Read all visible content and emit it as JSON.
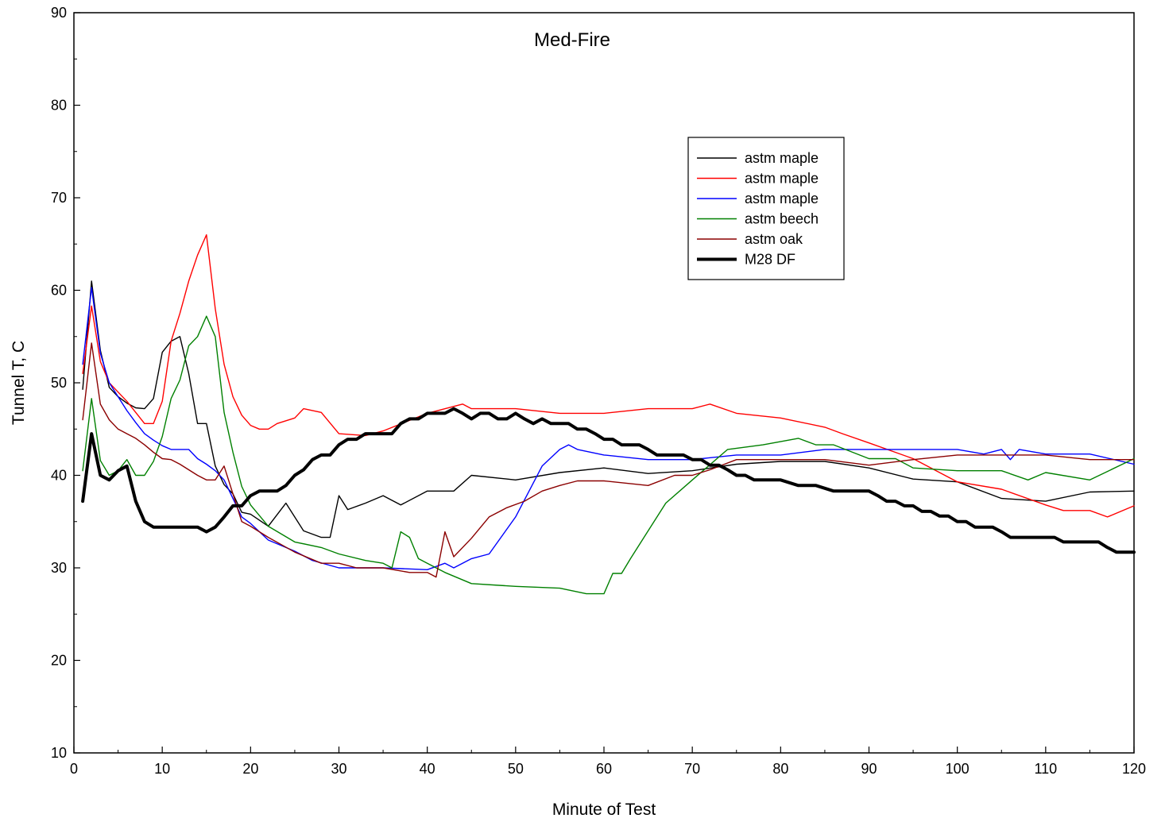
{
  "chart_data": {
    "type": "line",
    "title": "Med-Fire",
    "xlabel": "Minute of Test",
    "ylabel": "Tunnel T, C",
    "xlim": [
      0,
      120
    ],
    "ylim": [
      10,
      90
    ],
    "xticks": [
      0,
      10,
      20,
      30,
      40,
      50,
      60,
      70,
      80,
      90,
      100,
      110,
      120
    ],
    "yticks": [
      10,
      20,
      30,
      40,
      50,
      60,
      70,
      80,
      90
    ],
    "grid": false,
    "legend_position": "top-right",
    "series": [
      {
        "name": "astm maple",
        "color": "#000000",
        "x": [
          1,
          2,
          3,
          4,
          5,
          6,
          7,
          8,
          9,
          10,
          11,
          12,
          13,
          14,
          15,
          16,
          17,
          18,
          19,
          20,
          22,
          24,
          26,
          28,
          29,
          30,
          31,
          33,
          35,
          37,
          40,
          43,
          45,
          50,
          55,
          60,
          65,
          70,
          75,
          80,
          85,
          90,
          95,
          100,
          105,
          110,
          115,
          120
        ],
        "y": [
          49.3,
          61,
          53.5,
          49.5,
          48.5,
          47.8,
          47.3,
          47.2,
          48.3,
          53.3,
          54.5,
          55,
          51,
          45.6,
          45.6,
          41,
          39,
          38,
          36,
          35.8,
          34.5,
          37,
          34,
          33.3,
          33.3,
          37.8,
          36.3,
          37,
          37.8,
          36.8,
          38.3,
          38.3,
          40,
          39.5,
          40.3,
          40.8,
          40.2,
          40.5,
          41.2,
          41.5,
          41.5,
          40.8,
          39.6,
          39.3,
          37.5,
          37.2,
          38.2,
          38.3
        ]
      },
      {
        "name": "astm maple",
        "color": "#ff0000",
        "x": [
          1,
          2,
          3,
          4,
          5,
          6,
          7,
          8,
          9,
          10,
          11,
          12,
          13,
          14,
          15,
          16,
          17,
          18,
          19,
          20,
          21,
          22,
          23,
          25,
          26,
          28,
          30,
          33,
          35,
          40,
          44,
          45,
          50,
          55,
          60,
          65,
          70,
          72,
          75,
          80,
          85,
          87,
          90,
          95,
          100,
          105,
          110,
          112,
          115,
          117,
          120
        ],
        "y": [
          51,
          58.3,
          52.3,
          50,
          49,
          48,
          46.8,
          45.6,
          45.6,
          48,
          54.5,
          57.5,
          61,
          63.8,
          66,
          58,
          52,
          48.5,
          46.5,
          45.4,
          45,
          45,
          45.6,
          46.2,
          47.2,
          46.8,
          44.5,
          44.3,
          44.8,
          46.7,
          47.7,
          47.2,
          47.2,
          46.7,
          46.7,
          47.2,
          47.2,
          47.7,
          46.7,
          46.2,
          45.2,
          44.5,
          43.5,
          41.8,
          39.3,
          38.5,
          36.8,
          36.2,
          36.2,
          35.5,
          36.7
        ]
      },
      {
        "name": "astm maple",
        "color": "#0000ff",
        "x": [
          1,
          2,
          3,
          4,
          5,
          6,
          7,
          8,
          9,
          10,
          11,
          12,
          13,
          14,
          15,
          16,
          17,
          18,
          19,
          20,
          22,
          25,
          27,
          30,
          35,
          40,
          42,
          43,
          45,
          47,
          50,
          53,
          55,
          56,
          57,
          60,
          65,
          70,
          75,
          80,
          85,
          90,
          95,
          100,
          103,
          105,
          106,
          107,
          110,
          115,
          120
        ],
        "y": [
          52,
          60.3,
          53.2,
          50,
          48.5,
          47,
          45.7,
          44.5,
          43.8,
          43.2,
          42.8,
          42.8,
          42.8,
          41.8,
          41.2,
          40.5,
          39.5,
          37.5,
          35.5,
          34.8,
          33,
          31.8,
          30.8,
          30,
          30,
          29.8,
          30.5,
          30,
          31,
          31.5,
          35.5,
          41,
          42.8,
          43.3,
          42.8,
          42.2,
          41.7,
          41.7,
          42.2,
          42.2,
          42.8,
          42.8,
          42.8,
          42.8,
          42.3,
          42.8,
          41.7,
          42.8,
          42.3,
          42.3,
          41.2
        ]
      },
      {
        "name": "astm beech",
        "color": "#008000",
        "x": [
          1,
          2,
          3,
          4,
          5,
          6,
          7,
          8,
          9,
          10,
          11,
          12,
          13,
          14,
          15,
          16,
          17,
          18,
          19,
          20,
          22,
          25,
          28,
          30,
          33,
          35,
          36,
          37,
          38,
          39,
          40,
          42,
          45,
          50,
          55,
          58,
          60,
          61,
          62,
          63,
          65,
          67,
          70,
          74,
          78,
          82,
          84,
          86,
          90,
          93,
          95,
          100,
          105,
          108,
          110,
          115,
          120
        ],
        "y": [
          40.5,
          48.3,
          41.6,
          40,
          40.5,
          41.7,
          40,
          40,
          41.5,
          44.2,
          48.3,
          50.3,
          54,
          55,
          57.2,
          55,
          46.8,
          42.5,
          38.8,
          36.8,
          34.5,
          32.8,
          32.2,
          31.5,
          30.8,
          30.5,
          30,
          33.9,
          33.3,
          31,
          30.5,
          29.5,
          28.3,
          28,
          27.8,
          27.2,
          27.2,
          29.4,
          29.4,
          31,
          34,
          37,
          39.5,
          42.8,
          43.3,
          44,
          43.3,
          43.3,
          41.8,
          41.8,
          40.8,
          40.5,
          40.5,
          39.5,
          40.3,
          39.5,
          41.8
        ]
      },
      {
        "name": "astm oak",
        "color": "#8b0000",
        "x": [
          1,
          2,
          3,
          4,
          5,
          6,
          7,
          8,
          9,
          10,
          11,
          12,
          13,
          14,
          15,
          16,
          17,
          18,
          19,
          20,
          22,
          25,
          28,
          30,
          32,
          35,
          38,
          40,
          41,
          42,
          43,
          45,
          47,
          49,
          51,
          53,
          55,
          57,
          60,
          65,
          68,
          70,
          72,
          75,
          80,
          85,
          90,
          95,
          100,
          105,
          110,
          115,
          120
        ],
        "y": [
          46,
          54.3,
          47.7,
          46,
          45,
          44.5,
          44,
          43.3,
          42.5,
          41.8,
          41.7,
          41.2,
          40.6,
          40,
          39.5,
          39.5,
          41,
          38,
          35,
          34.5,
          33.3,
          31.7,
          30.5,
          30.5,
          30,
          30,
          29.5,
          29.5,
          29,
          33.9,
          31.2,
          33.2,
          35.5,
          36.5,
          37.2,
          38.3,
          38.9,
          39.4,
          39.4,
          38.9,
          40,
          40,
          40.6,
          41.7,
          41.7,
          41.7,
          41.1,
          41.7,
          42.2,
          42.2,
          42.2,
          41.7,
          41.7
        ]
      },
      {
        "name": "M28 DF",
        "color": "#000000",
        "x": [
          1,
          2,
          3,
          4,
          5,
          6,
          7,
          8,
          9,
          10,
          12,
          14,
          15,
          16,
          17,
          18,
          19,
          20,
          21,
          22,
          23,
          24,
          25,
          26,
          27,
          28,
          29,
          30,
          31,
          32,
          33,
          35,
          36,
          37,
          38,
          39,
          40,
          42,
          43,
          44,
          45,
          46,
          47,
          48,
          49,
          50,
          51,
          52,
          53,
          54,
          55,
          56,
          57,
          58,
          59,
          60,
          61,
          62,
          63,
          64,
          65,
          66,
          67,
          68,
          69,
          70,
          71,
          72,
          73,
          74,
          75,
          76,
          77,
          78,
          80,
          82,
          84,
          86,
          88,
          90,
          91,
          92,
          93,
          94,
          95,
          96,
          97,
          98,
          99,
          100,
          101,
          102,
          103,
          104,
          105,
          106,
          108,
          110,
          111,
          112,
          114,
          116,
          117,
          118,
          120
        ],
        "y": [
          37.2,
          44.5,
          40,
          39.5,
          40.5,
          41,
          37.2,
          35,
          34.4,
          34.4,
          34.4,
          34.4,
          33.9,
          34.4,
          35.5,
          36.7,
          36.7,
          37.8,
          38.3,
          38.3,
          38.3,
          38.9,
          40,
          40.6,
          41.7,
          42.2,
          42.2,
          43.3,
          43.9,
          43.9,
          44.5,
          44.5,
          44.5,
          45.6,
          46.1,
          46.1,
          46.7,
          46.7,
          47.2,
          46.7,
          46.1,
          46.7,
          46.7,
          46.1,
          46.1,
          46.7,
          46.1,
          45.6,
          46.1,
          45.6,
          45.6,
          45.6,
          45,
          45,
          44.5,
          43.9,
          43.9,
          43.3,
          43.3,
          43.3,
          42.8,
          42.2,
          42.2,
          42.2,
          42.2,
          41.7,
          41.7,
          41.1,
          41.1,
          40.6,
          40,
          40,
          39.5,
          39.5,
          39.5,
          38.9,
          38.9,
          38.3,
          38.3,
          38.3,
          37.8,
          37.2,
          37.2,
          36.7,
          36.7,
          36.1,
          36.1,
          35.6,
          35.6,
          35,
          35,
          34.4,
          34.4,
          34.4,
          33.9,
          33.3,
          33.3,
          33.3,
          33.3,
          32.8,
          32.8,
          32.8,
          32.2,
          31.7,
          31.7
        ]
      }
    ]
  }
}
